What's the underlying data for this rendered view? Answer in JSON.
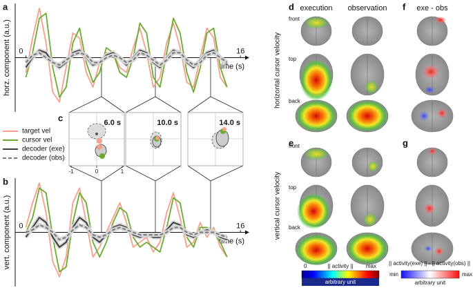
{
  "chart_data": [
    {
      "type": "line",
      "label": "a",
      "ylabel": "horz. component (a.u.)",
      "xlabel": "time (s)",
      "x": [
        0,
        0.5,
        1,
        1.5,
        2,
        2.5,
        3,
        3.5,
        4,
        4.5,
        5,
        5.5,
        6,
        6.5,
        7,
        7.5,
        8,
        8.5,
        9,
        9.5,
        10,
        10.5,
        11,
        11.5,
        12,
        12.5,
        13,
        13.5,
        14,
        14.5,
        15
      ],
      "xlim": [
        -0.8,
        16.4
      ],
      "ylim": [
        -1.1,
        1.1
      ],
      "xticks": [
        0,
        16
      ],
      "series": [
        {
          "name": "target vel",
          "color": "#f4a08a",
          "dashed": false,
          "values": [
            -0.3,
            0.4,
            1.0,
            0.3,
            -0.7,
            -0.9,
            -0.2,
            0.5,
            0.4,
            -0.3,
            -0.6,
            -0.1,
            0.1,
            0.1,
            -0.2,
            -0.3,
            0.2,
            0.6,
            0.1,
            -0.6,
            -0.4,
            0.3,
            0.7,
            0.2,
            -0.5,
            -0.6,
            0.0,
            0.6,
            0.4,
            -0.4,
            -0.6
          ]
        },
        {
          "name": "cursor vel",
          "color": "#6aab2e",
          "dashed": false,
          "values": [
            -0.4,
            0.1,
            0.8,
            0.9,
            -0.2,
            -0.8,
            -0.6,
            0.3,
            0.6,
            -0.1,
            -0.5,
            -0.3,
            0.2,
            0.1,
            -0.3,
            -0.4,
            0.0,
            0.7,
            0.5,
            -0.4,
            -0.6,
            0.1,
            0.8,
            0.5,
            -0.3,
            -0.7,
            -0.2,
            0.5,
            0.6,
            -0.2,
            -0.6
          ]
        },
        {
          "name": "decoder (exe)",
          "color": "#3d3d3d",
          "dashed": false,
          "values": [
            -0.2,
            0.0,
            0.15,
            0.1,
            -0.1,
            -0.2,
            -0.1,
            0.1,
            0.15,
            0.0,
            -0.15,
            -0.1,
            0.05,
            0.1,
            0.0,
            -0.15,
            0.0,
            0.15,
            0.1,
            -0.1,
            -0.2,
            0.0,
            0.15,
            0.1,
            -0.1,
            -0.2,
            -0.05,
            0.1,
            0.15,
            0.0,
            -0.15
          ]
        },
        {
          "name": "decoder (obs)",
          "color": "#777777",
          "dashed": true,
          "values": [
            -0.1,
            0.05,
            0.1,
            0.0,
            -0.1,
            -0.15,
            -0.05,
            0.05,
            0.1,
            0.05,
            -0.1,
            -0.1,
            0.0,
            0.05,
            0.0,
            -0.1,
            -0.05,
            0.1,
            0.05,
            -0.05,
            -0.15,
            -0.05,
            0.1,
            0.1,
            -0.05,
            -0.15,
            -0.1,
            0.05,
            0.1,
            0.0,
            -0.1
          ]
        }
      ]
    },
    {
      "type": "line",
      "label": "b",
      "ylabel": "vert. component (a.u.)",
      "xlabel": "time (s)",
      "x": [
        0,
        0.5,
        1,
        1.5,
        2,
        2.5,
        3,
        3.5,
        4,
        4.5,
        5,
        5.5,
        6,
        6.5,
        7,
        7.5,
        8,
        8.5,
        9,
        9.5,
        10,
        10.5,
        11,
        11.5,
        12,
        12.5,
        13,
        13.5,
        14,
        14.5,
        15
      ],
      "xlim": [
        -0.8,
        16.4
      ],
      "ylim": [
        -1.1,
        1.1
      ],
      "xticks": [
        0,
        16
      ],
      "series": [
        {
          "color": "#f4a08a",
          "dashed": false,
          "values": [
            0.1,
            0.6,
            1.0,
            0.4,
            -0.6,
            -0.9,
            -0.5,
            0.6,
            0.9,
            0.2,
            -0.5,
            -0.3,
            0.0,
            0.3,
            0.6,
            0.2,
            -0.3,
            -0.2,
            -0.1,
            -0.4,
            -0.2,
            0.4,
            0.8,
            0.3,
            -0.3,
            -0.2,
            0.2,
            -0.1,
            0.1,
            -0.3,
            -0.5
          ]
        },
        {
          "color": "#6aab2e",
          "dashed": false,
          "values": [
            0.0,
            0.3,
            0.9,
            0.8,
            -0.1,
            -0.8,
            -0.7,
            0.2,
            0.8,
            0.6,
            -0.2,
            -0.5,
            -0.2,
            0.2,
            0.5,
            0.4,
            -0.1,
            -0.3,
            -0.2,
            -0.3,
            -0.4,
            0.1,
            0.7,
            0.6,
            -0.1,
            -0.3,
            0.1,
            0.1,
            0.0,
            -0.2,
            -0.5
          ]
        },
        {
          "color": "#3d3d3d",
          "dashed": false,
          "values": [
            -0.1,
            0.1,
            0.3,
            0.2,
            -0.1,
            -0.3,
            -0.2,
            0.1,
            0.3,
            0.2,
            -0.1,
            -0.2,
            -0.05,
            0.1,
            0.15,
            0.1,
            -0.05,
            -0.1,
            -0.05,
            -0.1,
            -0.1,
            0.05,
            0.2,
            0.15,
            -0.05,
            -0.1,
            0.0,
            0.05,
            0.0,
            -0.1,
            -0.15
          ]
        },
        {
          "color": "#777777",
          "dashed": true,
          "values": [
            0.0,
            0.05,
            0.15,
            0.1,
            0.0,
            -0.15,
            -0.1,
            0.05,
            0.15,
            0.1,
            -0.05,
            -0.1,
            -0.05,
            0.05,
            0.1,
            0.05,
            0.0,
            -0.05,
            -0.05,
            -0.05,
            -0.05,
            0.0,
            0.1,
            0.1,
            0.0,
            -0.05,
            0.0,
            0.0,
            0.0,
            -0.05,
            -0.1
          ]
        }
      ]
    }
  ],
  "panel_c": {
    "label": "c",
    "times": [
      "6.0 s",
      "10.0 s",
      "14.0 s"
    ],
    "xticks": [
      -1,
      0,
      1
    ]
  },
  "brain": {
    "panels": [
      "d",
      "e",
      "f",
      "g"
    ],
    "columns": [
      "execution",
      "observation",
      "exe - obs"
    ],
    "views": [
      "front",
      "top",
      "back"
    ],
    "rows": [
      "horizontal cursor velocity",
      "vertical cursor velocity"
    ],
    "colorbar_activity": {
      "min": "0",
      "center": "|| activity ||",
      "max": "max",
      "unit": "arbitrary unit"
    },
    "colorbar_diff": {
      "title": "|| activity(exe) || - || activity(obs) ||",
      "min": "min",
      "max": "max",
      "unit": "arbitrary unit"
    }
  }
}
